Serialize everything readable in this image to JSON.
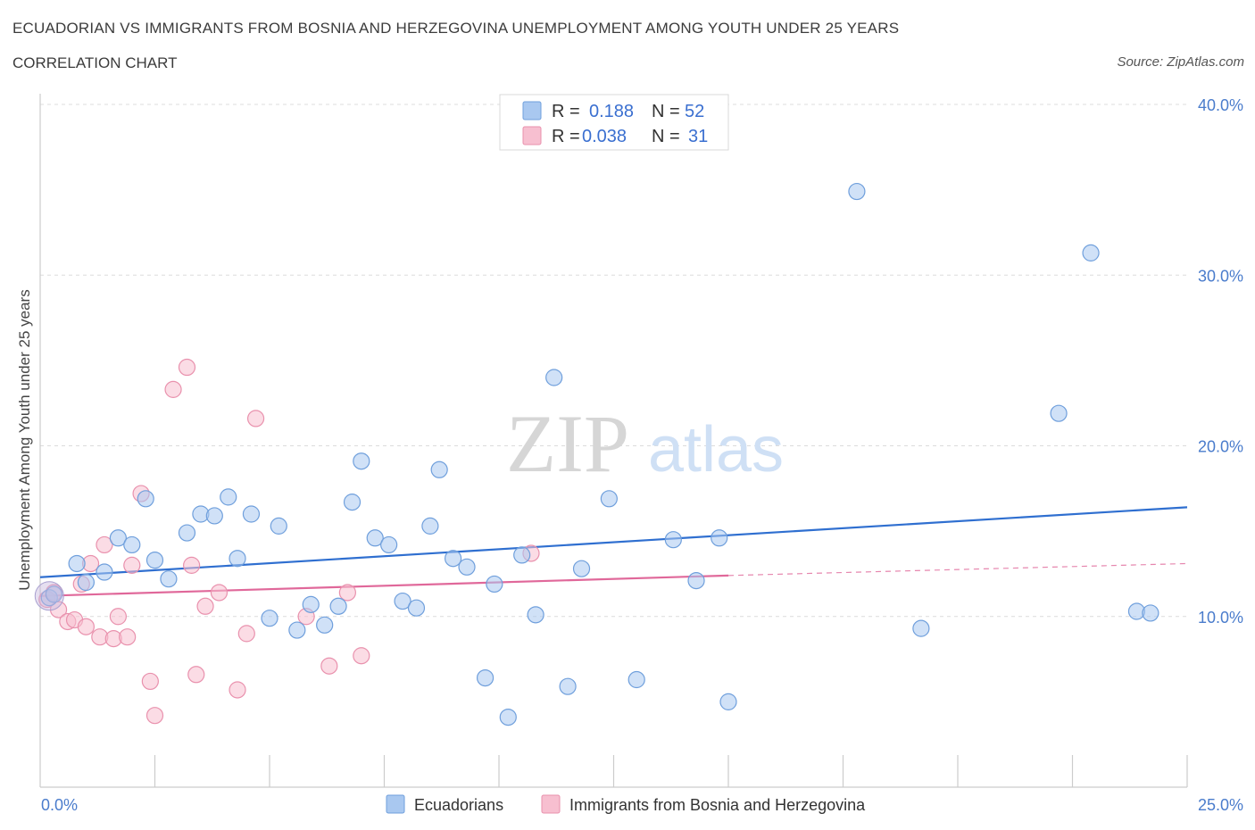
{
  "header": {
    "title": "ECUADORIAN VS IMMIGRANTS FROM BOSNIA AND HERZEGOVINA UNEMPLOYMENT AMONG YOUTH UNDER 25 YEARS",
    "subtitle": "CORRELATION CHART",
    "source": "Source: ZipAtlas.com"
  },
  "watermark": {
    "zip": "ZIP",
    "atlas": "atlas"
  },
  "legend": {
    "rows": [
      {
        "r_label": "R = ",
        "r_value": "0.188",
        "n_label": "N = ",
        "n_value": "52",
        "color": "#a9c8f0",
        "stroke": "#6f9fdc"
      },
      {
        "r_label": "R = ",
        "r_value": "0.038",
        "n_label": "N = ",
        "n_value": "31",
        "color": "#f7bfd0",
        "stroke": "#e991ad"
      }
    ]
  },
  "chart_data": {
    "type": "scatter",
    "xlabel": "",
    "ylabel": "Unemployment Among Youth under 25 years",
    "xlim": [
      0,
      25
    ],
    "ylim": [
      0,
      40
    ],
    "x_tick_labels": [
      "0.0%",
      "25.0%"
    ],
    "y_ticks": [
      10,
      20,
      30,
      40
    ],
    "y_tick_labels": [
      "10.0%",
      "20.0%",
      "30.0%",
      "40.0%"
    ],
    "grid": true,
    "legend_position": "top-center",
    "series": [
      {
        "name": "Ecuadorians",
        "color": "#a9c8f0",
        "stroke": "#6f9fdc",
        "trend_color": "#2f6fd0",
        "trend": {
          "x0": 0,
          "y0": 12.3,
          "x1": 25,
          "y1": 16.4
        },
        "points": [
          [
            0.2,
            11.1
          ],
          [
            0.3,
            11.3
          ],
          [
            0.8,
            13.1
          ],
          [
            1.0,
            12.0
          ],
          [
            1.4,
            12.6
          ],
          [
            1.7,
            14.6
          ],
          [
            2.0,
            14.2
          ],
          [
            2.3,
            16.9
          ],
          [
            2.5,
            13.3
          ],
          [
            2.8,
            12.2
          ],
          [
            3.2,
            14.9
          ],
          [
            3.5,
            16.0
          ],
          [
            3.8,
            15.9
          ],
          [
            4.1,
            17.0
          ],
          [
            4.3,
            13.4
          ],
          [
            4.6,
            16.0
          ],
          [
            5.0,
            9.9
          ],
          [
            5.2,
            15.3
          ],
          [
            5.6,
            9.2
          ],
          [
            5.9,
            10.7
          ],
          [
            6.2,
            9.5
          ],
          [
            6.5,
            10.6
          ],
          [
            6.8,
            16.7
          ],
          [
            7.0,
            19.1
          ],
          [
            7.3,
            14.6
          ],
          [
            7.6,
            14.2
          ],
          [
            7.9,
            10.9
          ],
          [
            8.2,
            10.5
          ],
          [
            8.5,
            15.3
          ],
          [
            8.7,
            18.6
          ],
          [
            9.0,
            13.4
          ],
          [
            9.3,
            12.9
          ],
          [
            9.7,
            6.4
          ],
          [
            9.9,
            11.9
          ],
          [
            10.2,
            4.1
          ],
          [
            10.5,
            13.6
          ],
          [
            10.8,
            10.1
          ],
          [
            11.2,
            24.0
          ],
          [
            11.5,
            5.9
          ],
          [
            11.8,
            12.8
          ],
          [
            12.4,
            16.9
          ],
          [
            13.0,
            6.3
          ],
          [
            13.8,
            14.5
          ],
          [
            14.3,
            12.1
          ],
          [
            14.8,
            14.6
          ],
          [
            15.0,
            5.0
          ],
          [
            17.8,
            34.9
          ],
          [
            19.2,
            9.3
          ],
          [
            22.2,
            21.9
          ],
          [
            22.9,
            31.3
          ],
          [
            23.9,
            10.3
          ],
          [
            24.2,
            10.2
          ]
        ]
      },
      {
        "name": "Immigrants from Bosnia and Herzegovina",
        "color": "#f7bfd0",
        "stroke": "#e991ad",
        "trend_color": "#e0689a",
        "trend": {
          "x0": 0,
          "y0": 11.2,
          "x1": 15,
          "y1": 12.4
        },
        "trend_dashed": {
          "x0": 15,
          "y0": 12.4,
          "x1": 25,
          "y1": 13.1
        },
        "points": [
          [
            0.15,
            11.0
          ],
          [
            0.3,
            11.4
          ],
          [
            0.4,
            10.4
          ],
          [
            0.6,
            9.7
          ],
          [
            0.75,
            9.8
          ],
          [
            0.9,
            11.9
          ],
          [
            1.0,
            9.4
          ],
          [
            1.1,
            13.1
          ],
          [
            1.3,
            8.8
          ],
          [
            1.4,
            14.2
          ],
          [
            1.6,
            8.7
          ],
          [
            1.7,
            10.0
          ],
          [
            1.9,
            8.8
          ],
          [
            2.0,
            13.0
          ],
          [
            2.2,
            17.2
          ],
          [
            2.4,
            6.2
          ],
          [
            2.5,
            4.2
          ],
          [
            2.9,
            23.3
          ],
          [
            3.2,
            24.6
          ],
          [
            3.3,
            13.0
          ],
          [
            3.4,
            6.6
          ],
          [
            3.6,
            10.6
          ],
          [
            3.9,
            11.4
          ],
          [
            4.3,
            5.7
          ],
          [
            4.5,
            9.0
          ],
          [
            4.7,
            21.6
          ],
          [
            5.8,
            10.0
          ],
          [
            6.3,
            7.1
          ],
          [
            6.7,
            11.4
          ],
          [
            7.0,
            7.7
          ],
          [
            10.7,
            13.7
          ]
        ]
      }
    ]
  }
}
